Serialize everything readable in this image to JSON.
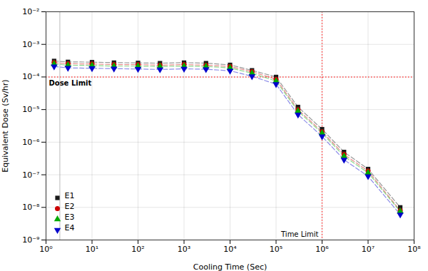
{
  "chart_data": {
    "type": "line",
    "xlabel": "Cooling Time (Sec)",
    "ylabel": "Equivalent Dose (Sv/hr)",
    "log": true,
    "grid": true,
    "legend": "lower left",
    "x": [
      1.5,
      3.0,
      10.0,
      30.0,
      100.0,
      300.0,
      1000.0,
      3000.0,
      10000.0,
      30000.0,
      100000.0,
      300000.0,
      1000000.0,
      3000000.0,
      10000000.0,
      50000000.0
    ],
    "series": [
      {
        "name": "E1",
        "color": "#1a1a1a",
        "marker": "square",
        "line_style": "dashed",
        "values": [
          0.00031,
          0.00029,
          0.000285,
          0.000275,
          0.00027,
          0.000265,
          0.000275,
          0.000265,
          0.000235,
          0.00016,
          0.0001,
          1.2e-05,
          2.5e-06,
          5e-07,
          1.5e-07,
          1e-08
        ]
      },
      {
        "name": "E2",
        "color": "#cc0000",
        "marker": "circle",
        "line_style": "dashed",
        "values": [
          0.000275,
          0.000255,
          0.00025,
          0.00024,
          0.00024,
          0.00023,
          0.00024,
          0.00023,
          0.00021,
          0.000145,
          8.5e-05,
          1e-05,
          2.1e-06,
          4.2e-07,
          1.3e-07,
          8e-09
        ]
      },
      {
        "name": "E3",
        "color": "#00aa00",
        "marker": "triangle-up",
        "line_style": "dashed",
        "values": [
          0.00025,
          0.00023,
          0.000225,
          0.000215,
          0.000215,
          0.00021,
          0.000215,
          0.00021,
          0.00019,
          0.00013,
          7.5e-05,
          9e-06,
          1.9e-06,
          3.7e-07,
          1.15e-07,
          7.5e-09
        ]
      },
      {
        "name": "E4",
        "color": "#0000cc",
        "marker": "triangle-down",
        "line_style": "dashed",
        "values": [
          0.00021,
          0.00019,
          0.000185,
          0.00018,
          0.000175,
          0.00017,
          0.000178,
          0.000172,
          0.000155,
          0.000105,
          6e-05,
          7e-06,
          1.5e-06,
          2.9e-07,
          9e-08,
          6e-09
        ]
      }
    ],
    "xlim": [
      1,
      100000000
    ],
    "ylim": [
      1e-09,
      0.01
    ],
    "xticks": [
      {
        "value": 1,
        "label": "10⁰"
      },
      {
        "value": 10,
        "label": "10¹"
      },
      {
        "value": 100,
        "label": "10²"
      },
      {
        "value": 1000,
        "label": "10³"
      },
      {
        "value": 10000,
        "label": "10⁴"
      },
      {
        "value": 100000,
        "label": "10⁵"
      },
      {
        "value": 1000000,
        "label": "10⁶"
      },
      {
        "value": 10000000,
        "label": "10⁷"
      },
      {
        "value": 100000000,
        "label": "10⁸"
      }
    ],
    "yticks": [
      {
        "value": 1e-09,
        "label": "10⁻⁹"
      },
      {
        "value": 1e-08,
        "label": "10⁻⁸"
      },
      {
        "value": 1e-07,
        "label": "10⁻⁷"
      },
      {
        "value": 1e-06,
        "label": "10⁻⁶"
      },
      {
        "value": 1e-05,
        "label": "10⁻⁵"
      },
      {
        "value": 0.0001,
        "label": "10⁻⁴"
      },
      {
        "value": 0.001,
        "label": "10⁻³"
      },
      {
        "value": 0.01,
        "label": "10⁻²"
      }
    ],
    "hlines": [
      {
        "value": 0.0001,
        "color": "#ff4444",
        "line_style": "dotted",
        "label": "Dose Limit"
      }
    ],
    "vlines": [
      {
        "value": 2.0,
        "color": "#aaaaaa",
        "line_style": "solid"
      },
      {
        "value": 1000000,
        "color": "#ff4444",
        "line_style": "dotted",
        "label": "Time Limit"
      }
    ]
  }
}
